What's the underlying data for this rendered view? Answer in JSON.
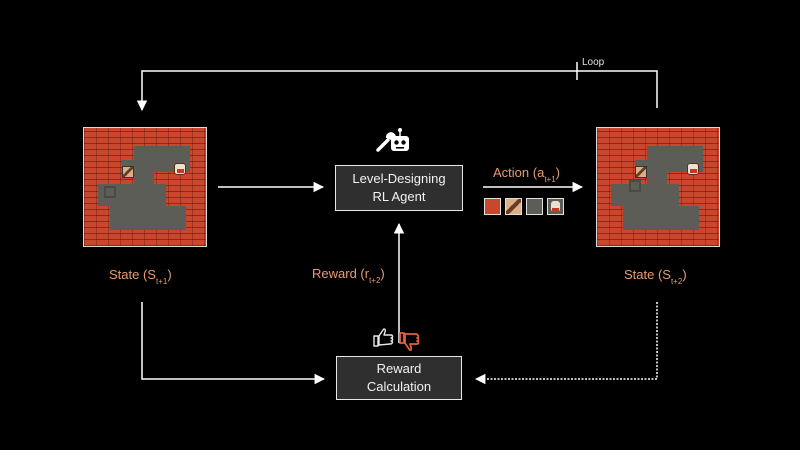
{
  "loop_label": "Loop",
  "agent_box": {
    "line1": "Level-Designing",
    "line2": "RL Agent"
  },
  "reward_box": {
    "line1": "Reward",
    "line2": "Calculation"
  },
  "action_label": {
    "text": "Action (a",
    "sub": "t+1",
    "close": ")"
  },
  "reward_label": {
    "text": "Reward (r",
    "sub": "t+2",
    "close": ")"
  },
  "state_left_label": {
    "text": "State (S",
    "sub": "t+1",
    "close": ")"
  },
  "state_right_label": {
    "text": "State (S",
    "sub": "t+2",
    "close": ")"
  },
  "tile_palette": [
    "wall",
    "crate",
    "floor",
    "player"
  ],
  "icons": {
    "agent": [
      "wrench-icon",
      "robot-icon"
    ],
    "reward": [
      "thumbs-up-icon",
      "thumbs-down-icon"
    ]
  },
  "colors": {
    "background": "#000000",
    "accent": "#e99a72",
    "box_fill": "#2f2f2f",
    "arrow": "#ffffff",
    "wall": "#c9472d",
    "floor": "#5d5d57"
  }
}
